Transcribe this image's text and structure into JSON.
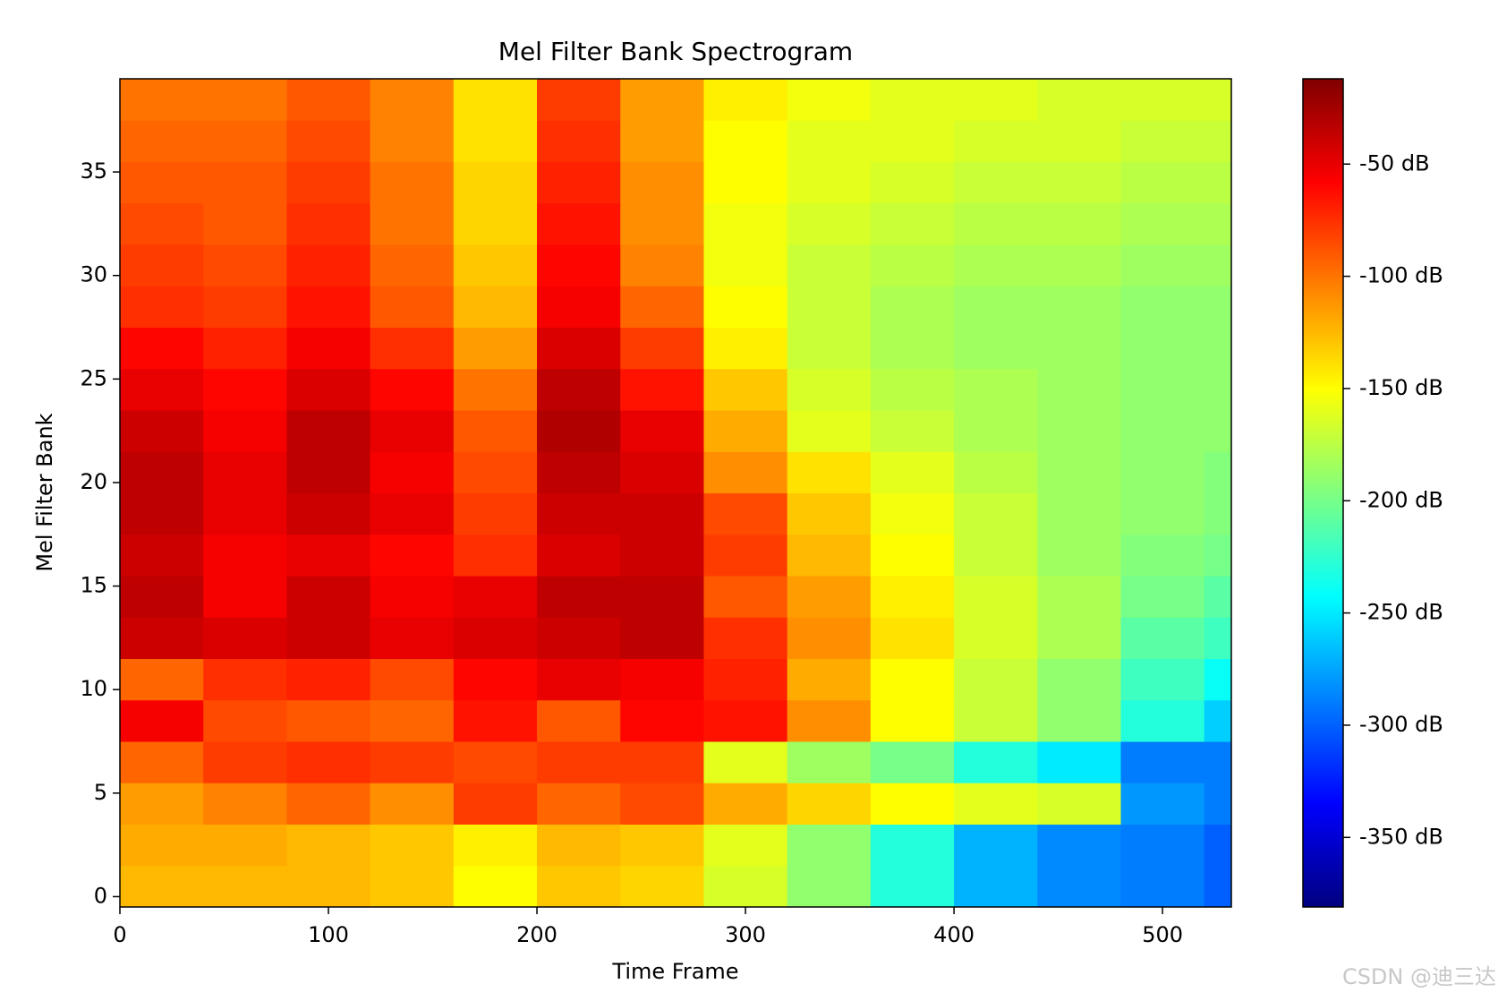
{
  "chart_data": {
    "type": "heatmap",
    "title": "Mel Filter Bank Spectrogram",
    "x_label": "Time Frame",
    "y_label": "Mel Filter Bank",
    "colormap": "jet",
    "watermark": "CSDN @迪三达",
    "x": [
      0,
      40,
      80,
      120,
      160,
      200,
      240,
      280,
      320,
      360,
      400,
      440,
      480,
      520,
      533
    ],
    "y": [
      -0.5,
      1.5,
      3.5,
      5.5,
      7.5,
      9.5,
      11.5,
      13.5,
      15.5,
      17.5,
      19.5,
      21.5,
      23.5,
      25.5,
      27.5,
      29.5,
      31.5,
      33.5,
      35.5,
      37.5,
      39.5
    ],
    "z": [
      [
        -125,
        -125,
        -125,
        -130,
        -150,
        -130,
        -135,
        -165,
        -190,
        -230,
        -270,
        -285,
        -290,
        -300
      ],
      [
        -120,
        -120,
        -125,
        -130,
        -145,
        -125,
        -130,
        -160,
        -190,
        -230,
        -270,
        -285,
        -290,
        -300
      ],
      [
        -115,
        -105,
        -95,
        -110,
        -80,
        -95,
        -85,
        -120,
        -135,
        -150,
        -160,
        -165,
        -280,
        -290
      ],
      [
        -95,
        -80,
        -75,
        -80,
        -85,
        -80,
        -80,
        -160,
        -185,
        -200,
        -230,
        -250,
        -290,
        -290
      ],
      [
        -55,
        -85,
        -90,
        -95,
        -65,
        -90,
        -60,
        -65,
        -110,
        -150,
        -170,
        -190,
        -230,
        -260
      ],
      [
        -95,
        -75,
        -70,
        -85,
        -60,
        -50,
        -55,
        -70,
        -120,
        -150,
        -170,
        -190,
        -220,
        -240
      ],
      [
        -40,
        -45,
        -40,
        -50,
        -45,
        -40,
        -35,
        -75,
        -110,
        -140,
        -165,
        -180,
        -210,
        -220
      ],
      [
        -35,
        -55,
        -40,
        -55,
        -50,
        -35,
        -35,
        -90,
        -115,
        -145,
        -165,
        -180,
        -200,
        -210
      ],
      [
        -40,
        -55,
        -50,
        -60,
        -75,
        -45,
        -40,
        -80,
        -125,
        -150,
        -170,
        -185,
        -195,
        -200
      ],
      [
        -35,
        -50,
        -40,
        -50,
        -80,
        -40,
        -40,
        -85,
        -130,
        -155,
        -170,
        -185,
        -190,
        -195
      ],
      [
        -35,
        -50,
        -35,
        -55,
        -85,
        -35,
        -45,
        -110,
        -140,
        -160,
        -175,
        -185,
        -190,
        -195
      ],
      [
        -40,
        -55,
        -35,
        -50,
        -90,
        -30,
        -50,
        -120,
        -160,
        -170,
        -180,
        -185,
        -190,
        -190
      ],
      [
        -50,
        -60,
        -45,
        -60,
        -100,
        -35,
        -65,
        -130,
        -165,
        -175,
        -180,
        -185,
        -190,
        -190
      ],
      [
        -60,
        -70,
        -55,
        -75,
        -115,
        -45,
        -80,
        -145,
        -170,
        -180,
        -185,
        -185,
        -190,
        -190
      ],
      [
        -75,
        -80,
        -65,
        -90,
        -125,
        -55,
        -95,
        -150,
        -170,
        -180,
        -185,
        -185,
        -190,
        -190
      ],
      [
        -80,
        -85,
        -70,
        -95,
        -130,
        -60,
        -105,
        -155,
        -170,
        -175,
        -180,
        -180,
        -185,
        -185
      ],
      [
        -85,
        -90,
        -75,
        -100,
        -135,
        -65,
        -110,
        -155,
        -165,
        -170,
        -175,
        -175,
        -180,
        -180
      ],
      [
        -90,
        -90,
        -80,
        -100,
        -135,
        -70,
        -110,
        -150,
        -160,
        -165,
        -170,
        -170,
        -175,
        -175
      ],
      [
        -95,
        -95,
        -85,
        -105,
        -140,
        -75,
        -115,
        -150,
        -160,
        -160,
        -165,
        -165,
        -170,
        -170
      ],
      [
        -100,
        -100,
        -90,
        -105,
        -140,
        -80,
        -115,
        -145,
        -155,
        -160,
        -160,
        -165,
        -165,
        -165
      ]
    ],
    "xlim": [
      0,
      533
    ],
    "ylim": [
      -0.5,
      39.5
    ],
    "xticks": [
      0,
      100,
      200,
      300,
      400,
      500
    ],
    "yticks": [
      0,
      5,
      10,
      15,
      20,
      25,
      30,
      35
    ],
    "clim": [
      -381,
      -12
    ],
    "cticks": [
      {
        "value": -50,
        "label": "-50 dB"
      },
      {
        "value": -100,
        "label": "-100 dB"
      },
      {
        "value": -150,
        "label": "-150 dB"
      },
      {
        "value": -200,
        "label": "-200 dB"
      },
      {
        "value": -250,
        "label": "-250 dB"
      },
      {
        "value": -300,
        "label": "-300 dB"
      },
      {
        "value": -350,
        "label": "-350 dB"
      }
    ]
  }
}
